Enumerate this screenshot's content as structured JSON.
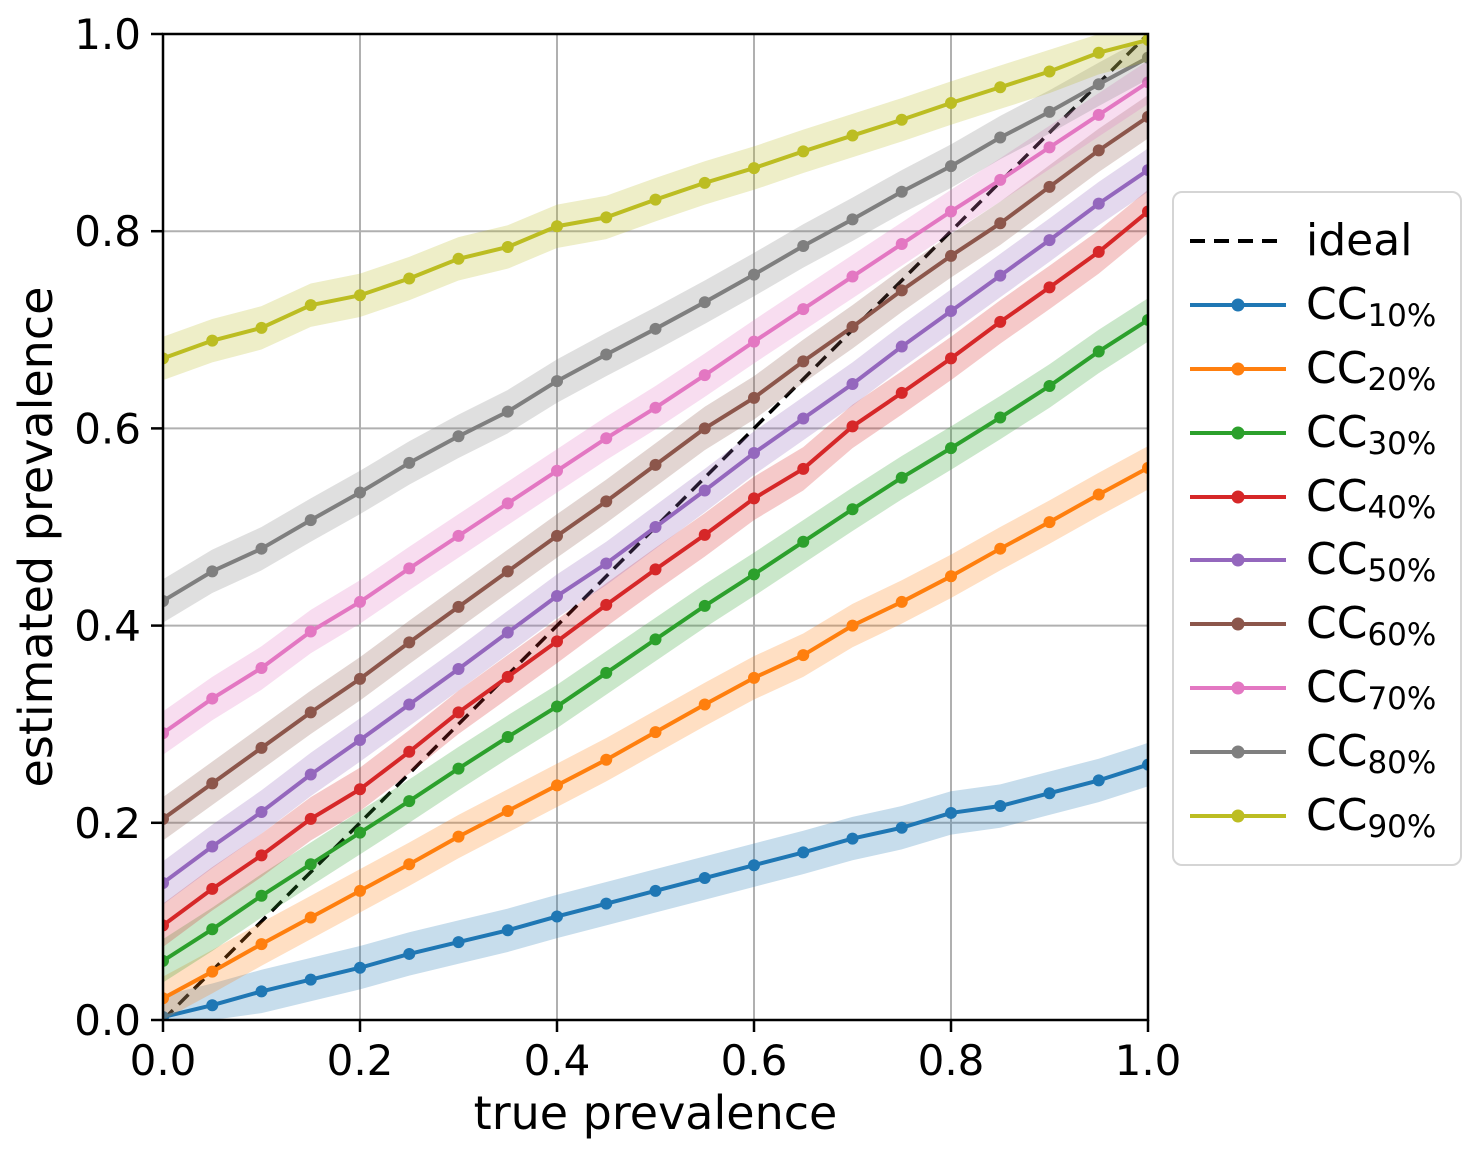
{
  "chart_data": {
    "type": "line",
    "title": "",
    "xlabel": "true prevalence",
    "ylabel": "estimated prevalence",
    "xlim": [
      0.0,
      1.0
    ],
    "ylim": [
      0.0,
      1.0
    ],
    "xticks": [
      0.0,
      0.2,
      0.4,
      0.6,
      0.8,
      1.0
    ],
    "yticks": [
      0.0,
      0.2,
      0.4,
      0.6,
      0.8,
      1.0
    ],
    "xtick_labels": [
      "0.0",
      "0.2",
      "0.4",
      "0.6",
      "0.8",
      "1.0"
    ],
    "ytick_labels": [
      "0.0",
      "0.2",
      "0.4",
      "0.6",
      "0.8",
      "1.0"
    ],
    "grid": true,
    "grid_color": "#b0b0b0",
    "spine_color": "#000000",
    "background": "#ffffff",
    "legend_position": "right of axes",
    "marker": "circle",
    "band_halfwidth": 0.022,
    "band_opacity": 0.25,
    "x": [
      0.0,
      0.05,
      0.1,
      0.15,
      0.2,
      0.25,
      0.3,
      0.35,
      0.4,
      0.45,
      0.5,
      0.55,
      0.6,
      0.65,
      0.7,
      0.75,
      0.8,
      0.85,
      0.9,
      0.95,
      1.0
    ],
    "ideal": {
      "label": "ideal",
      "color": "#000000",
      "linestyle": "dashed",
      "x": [
        0.0,
        1.0
      ],
      "y": [
        0.0,
        1.0
      ]
    },
    "series": [
      {
        "label_main": "CC",
        "label_sub": "10%",
        "color": "#1f77b4",
        "values": [
          0.003,
          0.015,
          0.029,
          0.041,
          0.053,
          0.067,
          0.079,
          0.091,
          0.105,
          0.118,
          0.131,
          0.144,
          0.157,
          0.17,
          0.184,
          0.195,
          0.21,
          0.217,
          0.23,
          0.243,
          0.259
        ]
      },
      {
        "label_main": "CC",
        "label_sub": "20%",
        "color": "#ff7f0e",
        "values": [
          0.022,
          0.049,
          0.077,
          0.104,
          0.131,
          0.158,
          0.186,
          0.212,
          0.238,
          0.264,
          0.292,
          0.32,
          0.347,
          0.37,
          0.4,
          0.424,
          0.45,
          0.478,
          0.505,
          0.533,
          0.56
        ]
      },
      {
        "label_main": "CC",
        "label_sub": "30%",
        "color": "#2ca02c",
        "values": [
          0.06,
          0.092,
          0.126,
          0.158,
          0.19,
          0.222,
          0.255,
          0.287,
          0.318,
          0.352,
          0.386,
          0.42,
          0.452,
          0.485,
          0.518,
          0.55,
          0.58,
          0.611,
          0.643,
          0.678,
          0.71
        ]
      },
      {
        "label_main": "CC",
        "label_sub": "40%",
        "color": "#d62728",
        "values": [
          0.096,
          0.133,
          0.167,
          0.204,
          0.234,
          0.272,
          0.312,
          0.348,
          0.384,
          0.421,
          0.457,
          0.492,
          0.529,
          0.559,
          0.602,
          0.636,
          0.671,
          0.708,
          0.743,
          0.779,
          0.82
        ]
      },
      {
        "label_main": "CC",
        "label_sub": "50%",
        "color": "#9467bd",
        "values": [
          0.139,
          0.176,
          0.211,
          0.249,
          0.284,
          0.32,
          0.356,
          0.393,
          0.43,
          0.463,
          0.5,
          0.537,
          0.575,
          0.61,
          0.645,
          0.683,
          0.719,
          0.755,
          0.791,
          0.828,
          0.862
        ]
      },
      {
        "label_main": "CC",
        "label_sub": "60%",
        "color": "#8c564b",
        "values": [
          0.204,
          0.24,
          0.276,
          0.312,
          0.346,
          0.383,
          0.419,
          0.455,
          0.491,
          0.526,
          0.563,
          0.6,
          0.631,
          0.668,
          0.703,
          0.74,
          0.775,
          0.808,
          0.845,
          0.882,
          0.916
        ]
      },
      {
        "label_main": "CC",
        "label_sub": "70%",
        "color": "#e377c2",
        "values": [
          0.291,
          0.326,
          0.357,
          0.394,
          0.424,
          0.458,
          0.491,
          0.524,
          0.557,
          0.59,
          0.621,
          0.654,
          0.688,
          0.721,
          0.754,
          0.787,
          0.82,
          0.852,
          0.885,
          0.918,
          0.951
        ]
      },
      {
        "label_main": "CC",
        "label_sub": "80%",
        "color": "#7f7f7f",
        "values": [
          0.425,
          0.455,
          0.478,
          0.507,
          0.535,
          0.565,
          0.592,
          0.617,
          0.648,
          0.675,
          0.701,
          0.728,
          0.756,
          0.785,
          0.812,
          0.84,
          0.866,
          0.895,
          0.921,
          0.949,
          0.976
        ]
      },
      {
        "label_main": "CC",
        "label_sub": "90%",
        "color": "#bcbd22",
        "values": [
          0.671,
          0.689,
          0.702,
          0.725,
          0.735,
          0.752,
          0.772,
          0.784,
          0.805,
          0.814,
          0.832,
          0.849,
          0.864,
          0.881,
          0.897,
          0.913,
          0.93,
          0.946,
          0.962,
          0.981,
          0.994
        ]
      }
    ]
  }
}
